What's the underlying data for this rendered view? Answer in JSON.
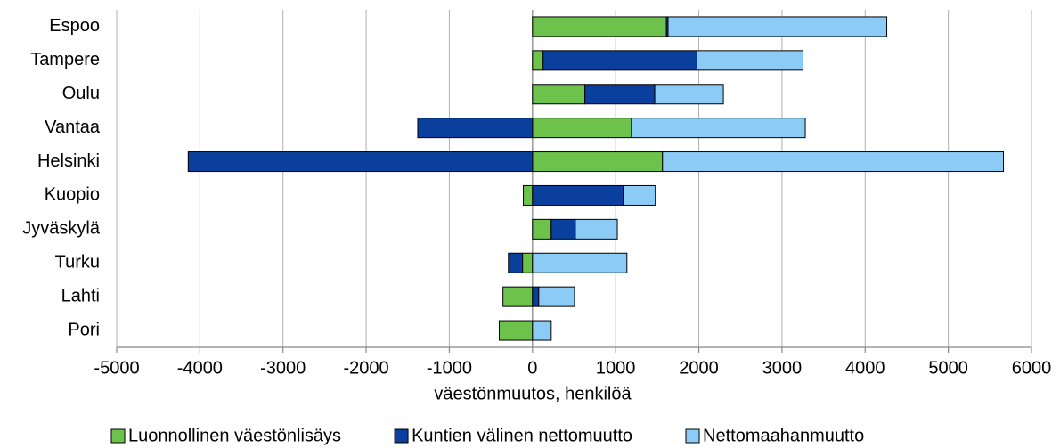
{
  "chart_data": {
    "type": "bar",
    "orientation": "horizontal",
    "stacked": true,
    "xlabel": "väestönmuutos, henkilöä",
    "categories": [
      "Espoo",
      "Tampere",
      "Oulu",
      "Vantaa",
      "Helsinki",
      "Kuopio",
      "Jyväskylä",
      "Turku",
      "Lahti",
      "Pori"
    ],
    "series": [
      {
        "name": "Luonnollinen väestönlisäys",
        "color": "#6cc24a",
        "values": [
          1610,
          128,
          630,
          1190,
          1563,
          -110,
          225,
          -120,
          -355,
          -400
        ]
      },
      {
        "name": "Kuntien välinen nettomuutto",
        "color": "#0a3f9e",
        "values": [
          20,
          1850,
          840,
          -1380,
          -4140,
          1092,
          290,
          -170,
          75,
          0
        ]
      },
      {
        "name": "Nettomaahanmuutto",
        "color": "#8ccbf5",
        "values": [
          2630,
          1275,
          825,
          2090,
          4100,
          385,
          505,
          1135,
          430,
          225
        ]
      }
    ],
    "xlim": [
      -5000,
      6000
    ],
    "xticks": [
      -5000,
      -4000,
      -3000,
      -2000,
      -1000,
      0,
      1000,
      2000,
      3000,
      4000,
      5000,
      6000
    ],
    "grid": true,
    "legend": "bottom"
  }
}
